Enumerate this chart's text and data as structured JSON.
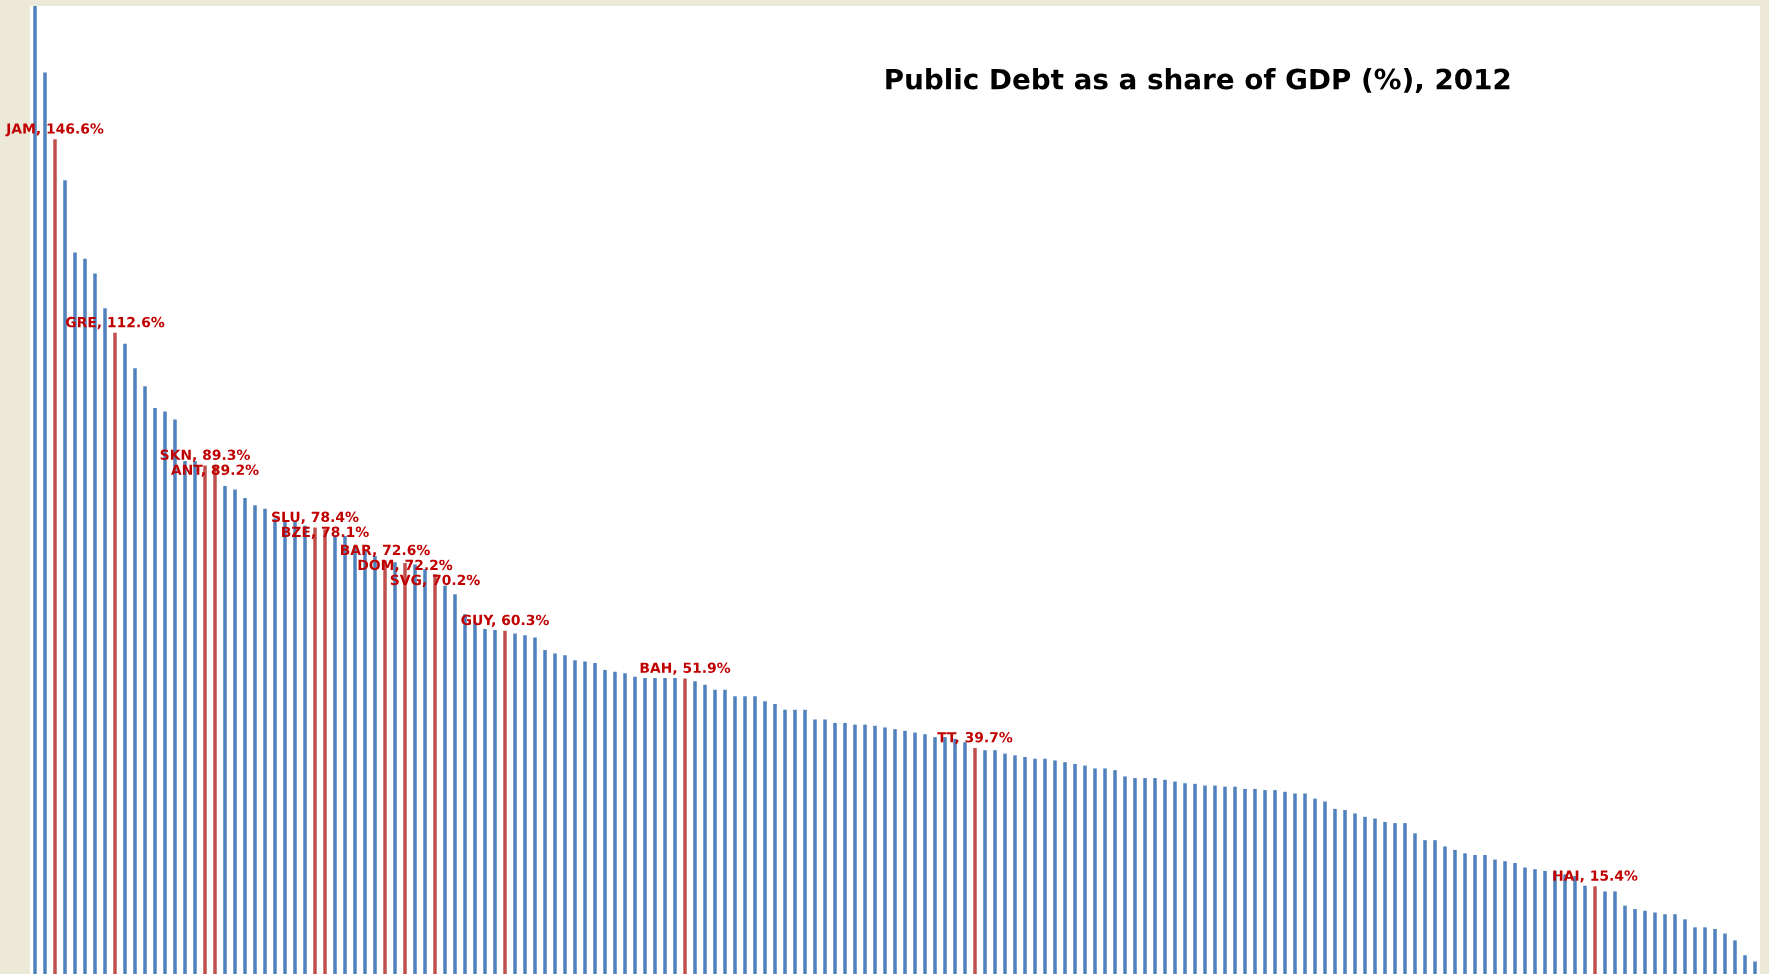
{
  "chart_data": {
    "type": "bar",
    "title": "Public Debt as a share of GDP (%), 2012",
    "categories": [
      null,
      null,
      null,
      null,
      null,
      null,
      null,
      null,
      null,
      null,
      null,
      null,
      null,
      null,
      null,
      null,
      null,
      null,
      null,
      null,
      null,
      null,
      null,
      null,
      null,
      null,
      null,
      null,
      null,
      null,
      null,
      null,
      null,
      null,
      null,
      null,
      null,
      null,
      null,
      null,
      null,
      null,
      null,
      null,
      null,
      null,
      null,
      null,
      null,
      null,
      null,
      null,
      null,
      null,
      null,
      null,
      null,
      null,
      null,
      null,
      null,
      null,
      null,
      null,
      null,
      null,
      null,
      null,
      null,
      null,
      null,
      null,
      null,
      null,
      null,
      null,
      null,
      null,
      null,
      null,
      null,
      null,
      null,
      null,
      null,
      null,
      null,
      null,
      null,
      null,
      null,
      null,
      null,
      null,
      null,
      null,
      null,
      null,
      null,
      null,
      null,
      null,
      null,
      null,
      null,
      null,
      null,
      null,
      null,
      null,
      null,
      null,
      null,
      null,
      null,
      null,
      null,
      null,
      null,
      null,
      null,
      null,
      null,
      null,
      null,
      null,
      null,
      null,
      null,
      null,
      null,
      null,
      null,
      null,
      null,
      null,
      null,
      null,
      null,
      null,
      null,
      null,
      null,
      null,
      null,
      null,
      null,
      null,
      null,
      null,
      null,
      null,
      null,
      null,
      null,
      null,
      null,
      null,
      null,
      null,
      null,
      null,
      null,
      null,
      null,
      null,
      null,
      null,
      null,
      null,
      null,
      null,
      null
    ],
    "values": [
      170,
      158.3,
      146.6,
      139.4,
      126.7,
      125.6,
      123.0,
      116.9,
      112.6,
      110.7,
      106.4,
      103.2,
      99.4,
      98.8,
      97.4,
      90.1,
      90.1,
      89.3,
      89.2,
      85.7,
      85.1,
      83.6,
      82.3,
      81.7,
      80.0,
      79.5,
      79.5,
      78.7,
      78.4,
      78.1,
      77.1,
      76.9,
      75.2,
      74.3,
      73.4,
      72.6,
      72.3,
      72.2,
      71.9,
      71.1,
      70.2,
      68.2,
      66.7,
      63.2,
      61.8,
      60.6,
      60.4,
      60.3,
      59.8,
      59.5,
      59.1,
      56.9,
      56.3,
      56.0,
      55.1,
      54.9,
      54.6,
      53.4,
      53.1,
      52.8,
      52.2,
      52.0,
      52.0,
      52.0,
      52.0,
      51.9,
      51.4,
      50.8,
      49.9,
      49.9,
      48.8,
      48.8,
      48.8,
      47.9,
      47.4,
      46.4,
      46.4,
      46.4,
      44.7,
      44.7,
      44.1,
      44.1,
      43.8,
      43.8,
      43.6,
      43.3,
      43.0,
      42.7,
      42.4,
      42.1,
      41.6,
      41.6,
      41.3,
      40.7,
      39.7,
      39.3,
      39.3,
      38.7,
      38.4,
      38.1,
      37.8,
      37.8,
      37.5,
      37.2,
      36.9,
      36.6,
      36.1,
      36.1,
      35.8,
      34.7,
      34.4,
      34.4,
      34.4,
      34.1,
      33.8,
      33.5,
      33.4,
      33.1,
      33.1,
      32.9,
      32.9,
      32.5,
      32.5,
      32.3,
      32.3,
      32.0,
      31.7,
      31.7,
      30.8,
      30.3,
      29.0,
      28.8,
      28.2,
      27.6,
      27.3,
      26.7,
      26.5,
      26.5,
      24.7,
      23.5,
      23.5,
      22.4,
      21.8,
      21.2,
      20.9,
      20.9,
      20.1,
      19.8,
      19.5,
      18.7,
      18.4,
      18.1,
      18.1,
      17.5,
      17.2,
      15.5,
      15.4,
      14.5,
      14.5,
      12.0,
      11.4,
      11.1,
      10.8,
      10.5,
      10.5,
      9.6,
      8.2,
      8.2,
      7.9,
      7.1,
      5.9,
      3.3,
      2.2
    ],
    "colors": [
      "#4f81bd",
      "#4f81bd",
      "#c0504d",
      "#4f81bd",
      "#4f81bd",
      "#4f81bd",
      "#4f81bd",
      "#4f81bd",
      "#c0504d",
      "#4f81bd",
      "#4f81bd",
      "#4f81bd",
      "#4f81bd",
      "#4f81bd",
      "#4f81bd",
      "#4f81bd",
      "#4f81bd",
      "#c0504d",
      "#c0504d",
      "#4f81bd",
      "#4f81bd",
      "#4f81bd",
      "#4f81bd",
      "#4f81bd",
      "#4f81bd",
      "#4f81bd",
      "#4f81bd",
      "#4f81bd",
      "#c0504d",
      "#c0504d",
      "#4f81bd",
      "#4f81bd",
      "#4f81bd",
      "#4f81bd",
      "#4f81bd",
      "#c0504d",
      "#4f81bd",
      "#c0504d",
      "#4f81bd",
      "#4f81bd",
      "#c0504d",
      "#4f81bd",
      "#4f81bd",
      "#4f81bd",
      "#4f81bd",
      "#4f81bd",
      "#4f81bd",
      "#c0504d",
      "#4f81bd",
      "#4f81bd",
      "#4f81bd",
      "#4f81bd",
      "#4f81bd",
      "#4f81bd",
      "#4f81bd",
      "#4f81bd",
      "#4f81bd",
      "#4f81bd",
      "#4f81bd",
      "#4f81bd",
      "#4f81bd",
      "#4f81bd",
      "#4f81bd",
      "#4f81bd",
      "#4f81bd",
      "#c0504d",
      "#4f81bd",
      "#4f81bd",
      "#4f81bd",
      "#4f81bd",
      "#4f81bd",
      "#4f81bd",
      "#4f81bd",
      "#4f81bd",
      "#4f81bd",
      "#4f81bd",
      "#4f81bd",
      "#4f81bd",
      "#4f81bd",
      "#4f81bd",
      "#4f81bd",
      "#4f81bd",
      "#4f81bd",
      "#4f81bd",
      "#4f81bd",
      "#4f81bd",
      "#4f81bd",
      "#4f81bd",
      "#4f81bd",
      "#4f81bd",
      "#4f81bd",
      "#4f81bd",
      "#4f81bd",
      "#4f81bd",
      "#c0504d",
      "#4f81bd",
      "#4f81bd",
      "#4f81bd",
      "#4f81bd",
      "#4f81bd",
      "#4f81bd",
      "#4f81bd",
      "#4f81bd",
      "#4f81bd",
      "#4f81bd",
      "#4f81bd",
      "#4f81bd",
      "#4f81bd",
      "#4f81bd",
      "#4f81bd",
      "#4f81bd",
      "#4f81bd",
      "#4f81bd",
      "#4f81bd",
      "#4f81bd",
      "#4f81bd",
      "#4f81bd",
      "#4f81bd",
      "#4f81bd",
      "#4f81bd",
      "#4f81bd",
      "#4f81bd",
      "#4f81bd",
      "#4f81bd",
      "#4f81bd",
      "#4f81bd",
      "#4f81bd",
      "#4f81bd",
      "#4f81bd",
      "#4f81bd",
      "#4f81bd",
      "#4f81bd",
      "#4f81bd",
      "#4f81bd",
      "#4f81bd",
      "#4f81bd",
      "#4f81bd",
      "#4f81bd",
      "#4f81bd",
      "#4f81bd",
      "#4f81bd",
      "#4f81bd",
      "#4f81bd",
      "#4f81bd",
      "#4f81bd",
      "#4f81bd",
      "#4f81bd",
      "#4f81bd",
      "#4f81bd",
      "#4f81bd",
      "#4f81bd",
      "#4f81bd",
      "#4f81bd",
      "#4f81bd",
      "#4f81bd",
      "#4f81bd",
      "#c0504d",
      "#4f81bd",
      "#4f81bd",
      "#4f81bd",
      "#4f81bd",
      "#4f81bd",
      "#4f81bd",
      "#4f81bd",
      "#4f81bd",
      "#4f81bd",
      "#4f81bd",
      "#4f81bd",
      "#4f81bd",
      "#4f81bd",
      "#4f81bd",
      "#4f81bd",
      "#4f81bd"
    ],
    "value_labels": [
      null,
      null,
      "JAM, 146.6%",
      null,
      null,
      null,
      null,
      null,
      "GRE, 112.6%",
      null,
      null,
      null,
      null,
      null,
      null,
      null,
      null,
      "SKN, 89.3%",
      "ANT, 89.2%",
      null,
      null,
      null,
      null,
      null,
      null,
      null,
      null,
      null,
      "SLU, 78.4%",
      "BZE, 78.1%",
      null,
      null,
      null,
      null,
      null,
      "BAR, 72.6%",
      null,
      "DOM, 72.2%",
      null,
      null,
      "SVG, 70.2%",
      null,
      null,
      null,
      null,
      null,
      null,
      "GUY, 60.3%",
      null,
      null,
      null,
      null,
      null,
      null,
      null,
      null,
      null,
      null,
      null,
      null,
      null,
      null,
      null,
      null,
      null,
      "BAH, 51.9%",
      null,
      null,
      null,
      null,
      null,
      null,
      null,
      null,
      null,
      null,
      null,
      null,
      null,
      null,
      null,
      null,
      null,
      null,
      null,
      null,
      null,
      null,
      null,
      null,
      null,
      null,
      null,
      null,
      "TT, 39.7%",
      null,
      null,
      null,
      null,
      null,
      null,
      null,
      null,
      null,
      null,
      null,
      null,
      null,
      null,
      null,
      null,
      null,
      null,
      null,
      null,
      null,
      null,
      null,
      null,
      null,
      null,
      null,
      null,
      null,
      null,
      null,
      null,
      null,
      null,
      null,
      null,
      null,
      null,
      null,
      null,
      null,
      null,
      null,
      null,
      null,
      null,
      null,
      null,
      null,
      null,
      null,
      null,
      null,
      null,
      null,
      null,
      null,
      null,
      null,
      null,
      null,
      "HAI, 15.4%",
      null,
      null,
      null,
      null,
      null,
      null,
      null,
      null,
      null,
      null,
      null,
      null,
      null,
      null,
      null,
      null
    ],
    "ylim": [
      0,
      170
    ],
    "tick_labels": false
  }
}
